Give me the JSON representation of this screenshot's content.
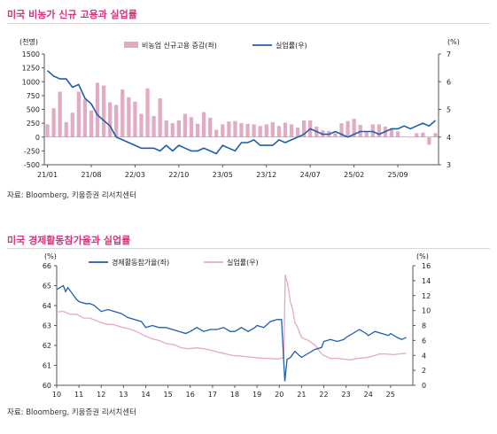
{
  "charts": [
    {
      "title": "미국 비농가 신규 고용과 실업률",
      "source": "자료: Bloomberg, 키움증권 리서치센터",
      "left_unit": "(천명)",
      "right_unit": "(%)",
      "legend": [
        "비농업 신규고용 증감(좌)",
        "실업률(우)"
      ],
      "x_ticks": [
        "21/01",
        "21/08",
        "22/03",
        "22/10",
        "23/05",
        "23/12",
        "24/07",
        "25/02",
        "25/09"
      ],
      "y_left_ticks": [
        "1500",
        "1250",
        "1000",
        "750",
        "500",
        "250",
        "0",
        "-250",
        "-500"
      ],
      "y_right_ticks": [
        "7",
        "6",
        "5",
        "4",
        "3"
      ]
    },
    {
      "title": "미국 경제활동참가율과 실업률",
      "source": "자료: Bloomberg, 키움증권 리서치센터",
      "left_unit": "(%)",
      "right_unit": "(%)",
      "legend": [
        "경제활동참가율(좌)",
        "실업률(우)"
      ],
      "x_ticks": [
        "10",
        "11",
        "12",
        "13",
        "14",
        "15",
        "16",
        "17",
        "18",
        "19",
        "20",
        "21",
        "22",
        "23",
        "24",
        "25"
      ],
      "y_left_ticks": [
        "66",
        "65",
        "64",
        "63",
        "62",
        "61",
        "60"
      ],
      "y_right_ticks": [
        "16",
        "14",
        "12",
        "10",
        "8",
        "6",
        "4",
        "2",
        "0"
      ]
    }
  ],
  "chart_data": [
    {
      "type": "bar",
      "title": "미국 비농가 신규 고용과 실업률",
      "x_start": "2021-01",
      "frequency": "monthly",
      "ylim_left": [
        -500,
        1500
      ],
      "ylim_right": [
        3,
        7
      ],
      "series": [
        {
          "name": "비농업 신규고용 증감(좌)",
          "axis": "left",
          "color": "#e3aac4",
          "values": [
            230,
            520,
            820,
            270,
            440,
            820,
            680,
            480,
            980,
            930,
            630,
            580,
            860,
            720,
            640,
            420,
            880,
            380,
            700,
            300,
            250,
            300,
            420,
            360,
            240,
            450,
            350,
            130,
            230,
            280,
            290,
            250,
            240,
            230,
            200,
            230,
            270,
            200,
            260,
            230,
            170,
            300,
            300,
            190,
            120,
            110,
            70,
            250,
            290,
            330,
            220,
            90,
            230,
            230,
            190,
            160,
            100,
            10,
            -10,
            70,
            80,
            -140,
            70
          ]
        },
        {
          "name": "실업률(우)",
          "axis": "right",
          "color": "#1f5ea8",
          "values": [
            6.4,
            6.2,
            6.1,
            6.1,
            5.8,
            5.9,
            5.4,
            5.2,
            4.8,
            4.6,
            4.4,
            4.0,
            3.9,
            3.8,
            3.7,
            3.6,
            3.6,
            3.6,
            3.5,
            3.7,
            3.5,
            3.7,
            3.6,
            3.5,
            3.5,
            3.6,
            3.5,
            3.4,
            3.7,
            3.6,
            3.5,
            3.8,
            3.8,
            3.9,
            3.7,
            3.7,
            3.7,
            3.9,
            3.8,
            3.9,
            4.0,
            4.1,
            4.3,
            4.2,
            4.1,
            4.1,
            4.2,
            4.1,
            4.0,
            4.1,
            4.2,
            4.2,
            4.2,
            4.1,
            4.2,
            4.3,
            4.3,
            4.4,
            4.3,
            4.4,
            4.5,
            4.4,
            4.6
          ]
        }
      ]
    },
    {
      "type": "line",
      "title": "미국 경제활동참가율과 실업률",
      "x_range": [
        10,
        26
      ],
      "ylim_left": [
        60,
        66
      ],
      "ylim_right": [
        0,
        16
      ],
      "series": [
        {
          "name": "경제활동참가율(좌)",
          "axis": "left",
          "color": "#1f5ea8",
          "points": [
            [
              10,
              64.8
            ],
            [
              10.3,
              65.0
            ],
            [
              10.4,
              64.7
            ],
            [
              10.5,
              64.9
            ],
            [
              10.7,
              64.6
            ],
            [
              10.9,
              64.3
            ],
            [
              11,
              64.2
            ],
            [
              11.3,
              64.1
            ],
            [
              11.5,
              64.1
            ],
            [
              11.7,
              64.0
            ],
            [
              12,
              63.7
            ],
            [
              12.3,
              63.8
            ],
            [
              12.6,
              63.7
            ],
            [
              12.9,
              63.6
            ],
            [
              13.2,
              63.4
            ],
            [
              13.5,
              63.3
            ],
            [
              13.8,
              63.2
            ],
            [
              14,
              62.9
            ],
            [
              14.3,
              63.0
            ],
            [
              14.6,
              62.9
            ],
            [
              14.9,
              62.9
            ],
            [
              15.2,
              62.8
            ],
            [
              15.5,
              62.7
            ],
            [
              15.8,
              62.6
            ],
            [
              16,
              62.7
            ],
            [
              16.3,
              62.9
            ],
            [
              16.6,
              62.7
            ],
            [
              16.9,
              62.8
            ],
            [
              17.2,
              62.8
            ],
            [
              17.5,
              62.9
            ],
            [
              17.8,
              62.7
            ],
            [
              18,
              62.7
            ],
            [
              18.3,
              62.9
            ],
            [
              18.6,
              62.7
            ],
            [
              18.9,
              62.9
            ],
            [
              19,
              63.0
            ],
            [
              19.3,
              62.9
            ],
            [
              19.6,
              63.2
            ],
            [
              19.9,
              63.3
            ],
            [
              20.1,
              63.3
            ],
            [
              20.25,
              60.2
            ],
            [
              20.35,
              61.3
            ],
            [
              20.5,
              61.4
            ],
            [
              20.7,
              61.7
            ],
            [
              20.9,
              61.5
            ],
            [
              21,
              61.4
            ],
            [
              21.3,
              61.6
            ],
            [
              21.6,
              61.8
            ],
            [
              21.9,
              61.9
            ],
            [
              22,
              62.2
            ],
            [
              22.3,
              62.3
            ],
            [
              22.6,
              62.2
            ],
            [
              22.9,
              62.3
            ],
            [
              23,
              62.4
            ],
            [
              23.3,
              62.6
            ],
            [
              23.6,
              62.8
            ],
            [
              23.9,
              62.6
            ],
            [
              24,
              62.5
            ],
            [
              24.3,
              62.7
            ],
            [
              24.6,
              62.6
            ],
            [
              24.9,
              62.5
            ],
            [
              25,
              62.6
            ],
            [
              25.3,
              62.4
            ],
            [
              25.5,
              62.3
            ],
            [
              25.7,
              62.4
            ]
          ]
        },
        {
          "name": "실업률(우)",
          "axis": "right",
          "color": "#e8a8c4",
          "points": [
            [
              10,
              9.8
            ],
            [
              10.3,
              9.9
            ],
            [
              10.6,
              9.5
            ],
            [
              10.9,
              9.5
            ],
            [
              11.2,
              9.0
            ],
            [
              11.5,
              9.0
            ],
            [
              11.9,
              8.5
            ],
            [
              12.2,
              8.2
            ],
            [
              12.6,
              8.1
            ],
            [
              12.9,
              7.8
            ],
            [
              13.2,
              7.6
            ],
            [
              13.6,
              7.2
            ],
            [
              13.9,
              6.7
            ],
            [
              14.3,
              6.2
            ],
            [
              14.6,
              6.0
            ],
            [
              14.9,
              5.6
            ],
            [
              15.3,
              5.4
            ],
            [
              15.6,
              5.0
            ],
            [
              15.9,
              4.9
            ],
            [
              16.3,
              5.0
            ],
            [
              16.6,
              4.9
            ],
            [
              16.9,
              4.7
            ],
            [
              17.3,
              4.4
            ],
            [
              17.6,
              4.2
            ],
            [
              17.9,
              4.0
            ],
            [
              18.3,
              3.9
            ],
            [
              18.6,
              3.8
            ],
            [
              18.9,
              3.7
            ],
            [
              19.3,
              3.6
            ],
            [
              19.6,
              3.6
            ],
            [
              19.9,
              3.5
            ],
            [
              20.2,
              3.7
            ],
            [
              20.27,
              14.8
            ],
            [
              20.4,
              13.2
            ],
            [
              20.5,
              11.1
            ],
            [
              20.6,
              10.2
            ],
            [
              20.7,
              8.4
            ],
            [
              20.8,
              7.9
            ],
            [
              21,
              6.4
            ],
            [
              21.3,
              6.0
            ],
            [
              21.6,
              5.4
            ],
            [
              21.9,
              4.2
            ],
            [
              22,
              4.0
            ],
            [
              22.3,
              3.6
            ],
            [
              22.6,
              3.6
            ],
            [
              22.9,
              3.5
            ],
            [
              23.2,
              3.4
            ],
            [
              23.5,
              3.6
            ],
            [
              23.9,
              3.7
            ],
            [
              24.2,
              3.9
            ],
            [
              24.5,
              4.2
            ],
            [
              24.8,
              4.2
            ],
            [
              25.1,
              4.1
            ],
            [
              25.4,
              4.2
            ],
            [
              25.7,
              4.3
            ]
          ]
        }
      ]
    }
  ]
}
